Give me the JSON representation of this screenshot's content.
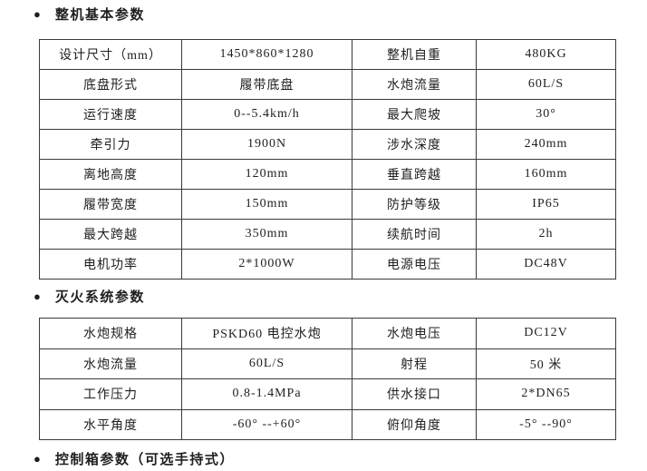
{
  "page": {
    "background": "#ffffff",
    "text_color": "#1f1f1f",
    "border_color": "#3b3b3b",
    "bullet_glyph": "●"
  },
  "sections": [
    {
      "title": "整机基本参数",
      "table_rows": [
        [
          "设计尺寸（mm）",
          "1450*860*1280",
          "整机自重",
          "480KG"
        ],
        [
          "底盘形式",
          "履带底盘",
          "水炮流量",
          "60L/S"
        ],
        [
          "运行速度",
          "0--5.4km/h",
          "最大爬坡",
          "30°"
        ],
        [
          "牵引力",
          "1900N",
          "涉水深度",
          "240mm"
        ],
        [
          "离地高度",
          "120mm",
          "垂直跨越",
          "160mm"
        ],
        [
          "履带宽度",
          "150mm",
          "防护等级",
          "IP65"
        ],
        [
          "最大跨越",
          "350mm",
          "续航时间",
          "2h"
        ],
        [
          "电机功率",
          "2*1000W",
          "电源电压",
          "DC48V"
        ]
      ]
    },
    {
      "title": "灭火系统参数",
      "table_rows": [
        [
          "水炮规格",
          "PSKD60 电控水炮",
          "水炮电压",
          "DC12V"
        ],
        [
          "水炮流量",
          "60L/S",
          "射程",
          "50 米"
        ],
        [
          "工作压力",
          "0.8-1.4MPa",
          "供水接口",
          "2*DN65"
        ],
        [
          "水平角度",
          "-60° --+60°",
          "俯仰角度",
          "-5° --90°"
        ]
      ]
    },
    {
      "title": "控制箱参数（可选手持式）",
      "table_rows": null
    }
  ],
  "table_layout_note": "4 columns: parameter label / value / parameter label / value"
}
